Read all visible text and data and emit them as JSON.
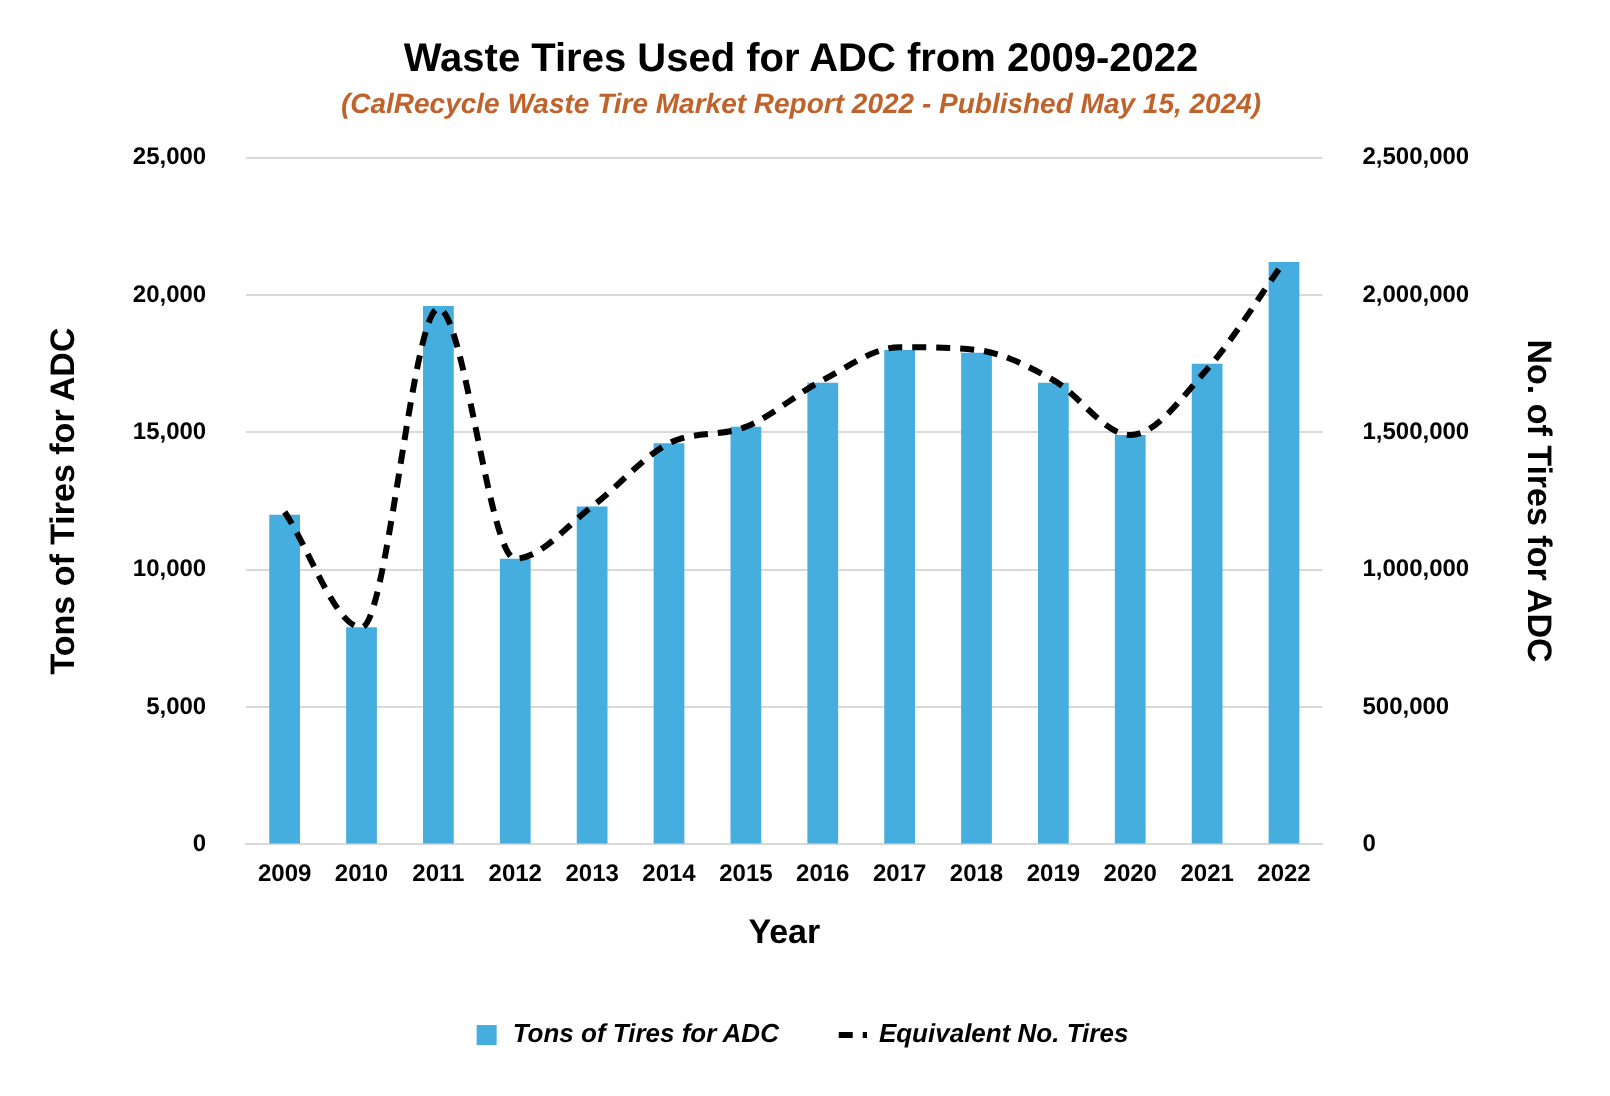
{
  "chart_data": {
    "type": "bar",
    "title": "Waste Tires Used for ADC from 2009-2022",
    "subtitle": "(CalRecycle Waste Tire Market Report 2022 - Published May 15, 2024)",
    "xlabel": "Year",
    "ylabel": "Tons of Tires for ADC",
    "y2label": "No. of Tires for ADC",
    "categories": [
      "2009",
      "2010",
      "2011",
      "2012",
      "2013",
      "2014",
      "2015",
      "2016",
      "2017",
      "2018",
      "2019",
      "2020",
      "2021",
      "2022"
    ],
    "series": [
      {
        "name": "Tons of Tires for ADC",
        "color": "#45aede",
        "values": [
          12000,
          7900,
          19600,
          10400,
          12300,
          14600,
          15200,
          16800,
          18000,
          17900,
          16800,
          14900,
          17500,
          21200
        ]
      },
      {
        "name": "Equivalent No. Tires",
        "type": "line",
        "axis": "y2",
        "color": "#000000",
        "line_style": "dashed",
        "marker": "none",
        "values": [
          1210000,
          790000,
          1950000,
          1040000,
          1230000,
          1460000,
          1520000,
          1690000,
          1810000,
          1800000,
          1690000,
          1490000,
          1730000,
          2120000
        ]
      }
    ],
    "ylim": [
      0,
      25000
    ],
    "yticks": [
      0,
      {
        "value": 5000,
        "label": "5,000"
      },
      {
        "value": 10000,
        "label": "10,000"
      },
      {
        "value": 15000,
        "label": "15,000"
      },
      {
        "value": 20000,
        "label": "20,000"
      },
      {
        "value": 25000,
        "label": "25,000"
      }
    ],
    "y2lim": [
      0,
      2500000
    ],
    "y2ticks": [
      0,
      {
        "value": 500000,
        "label": "500,000"
      },
      {
        "value": 1000000,
        "label": "1,000,000"
      },
      {
        "value": 1500000,
        "label": "1,500,000"
      },
      {
        "value": 2000000,
        "label": "2,000,000"
      },
      {
        "value": 2500000,
        "label": "2,500,000"
      }
    ],
    "grid": "y",
    "legend": "bottom"
  }
}
